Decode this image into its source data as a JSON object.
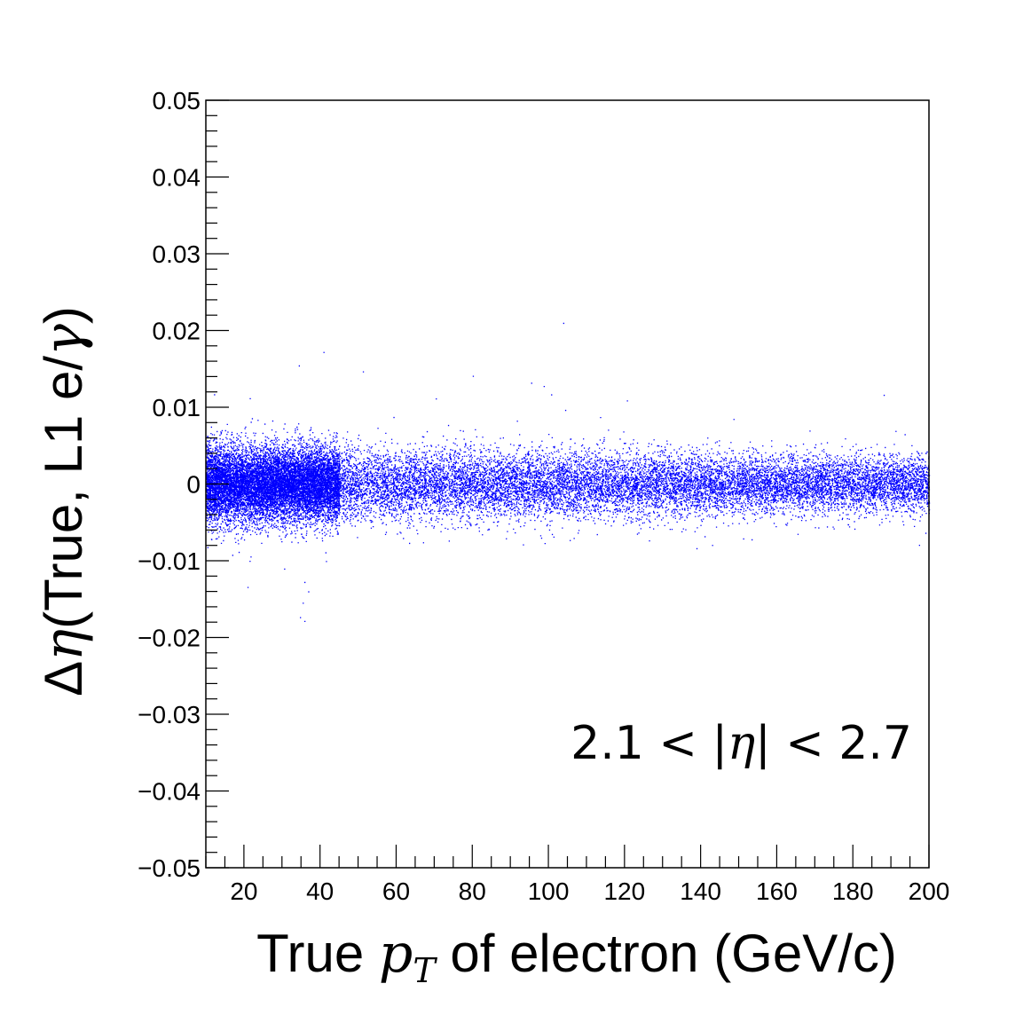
{
  "chart_data": {
    "type": "scatter",
    "xlabel": {
      "prefix": "True ",
      "var": "p",
      "sub": "T",
      "suffix": " of electron (GeV/c)"
    },
    "ylabel": {
      "prefix": "Δ",
      "var": "η",
      "suffix": "(True, L1 e/",
      "var2": "γ",
      "end": ")"
    },
    "xlim": [
      10,
      200
    ],
    "ylim": [
      -0.05,
      0.05
    ],
    "x_major_ticks": [
      20,
      40,
      60,
      80,
      100,
      120,
      140,
      160,
      180,
      200
    ],
    "x_tick_labels": [
      "20",
      "40",
      "60",
      "80",
      "100",
      "120",
      "140",
      "160",
      "180",
      "200"
    ],
    "y_major_ticks": [
      -0.05,
      -0.04,
      -0.03,
      -0.02,
      -0.01,
      0,
      0.01,
      0.02,
      0.03,
      0.04,
      0.05
    ],
    "y_tick_labels": [
      "−0.05",
      "−0.04",
      "−0.03",
      "−0.02",
      "−0.01",
      "0",
      "0.01",
      "0.02",
      "0.03",
      "0.04",
      "0.05"
    ],
    "annotation": {
      "left": "2.1 < |",
      "var": "η",
      "right": "| < 2.7"
    },
    "marker_color": "#0000ff",
    "distribution": {
      "center": 0.0,
      "spread_at_low_pt": 0.0025,
      "spread_at_high_pt": 0.0018,
      "dense_low_pt_range": [
        10,
        45
      ]
    },
    "grid": false,
    "legend": "none"
  }
}
